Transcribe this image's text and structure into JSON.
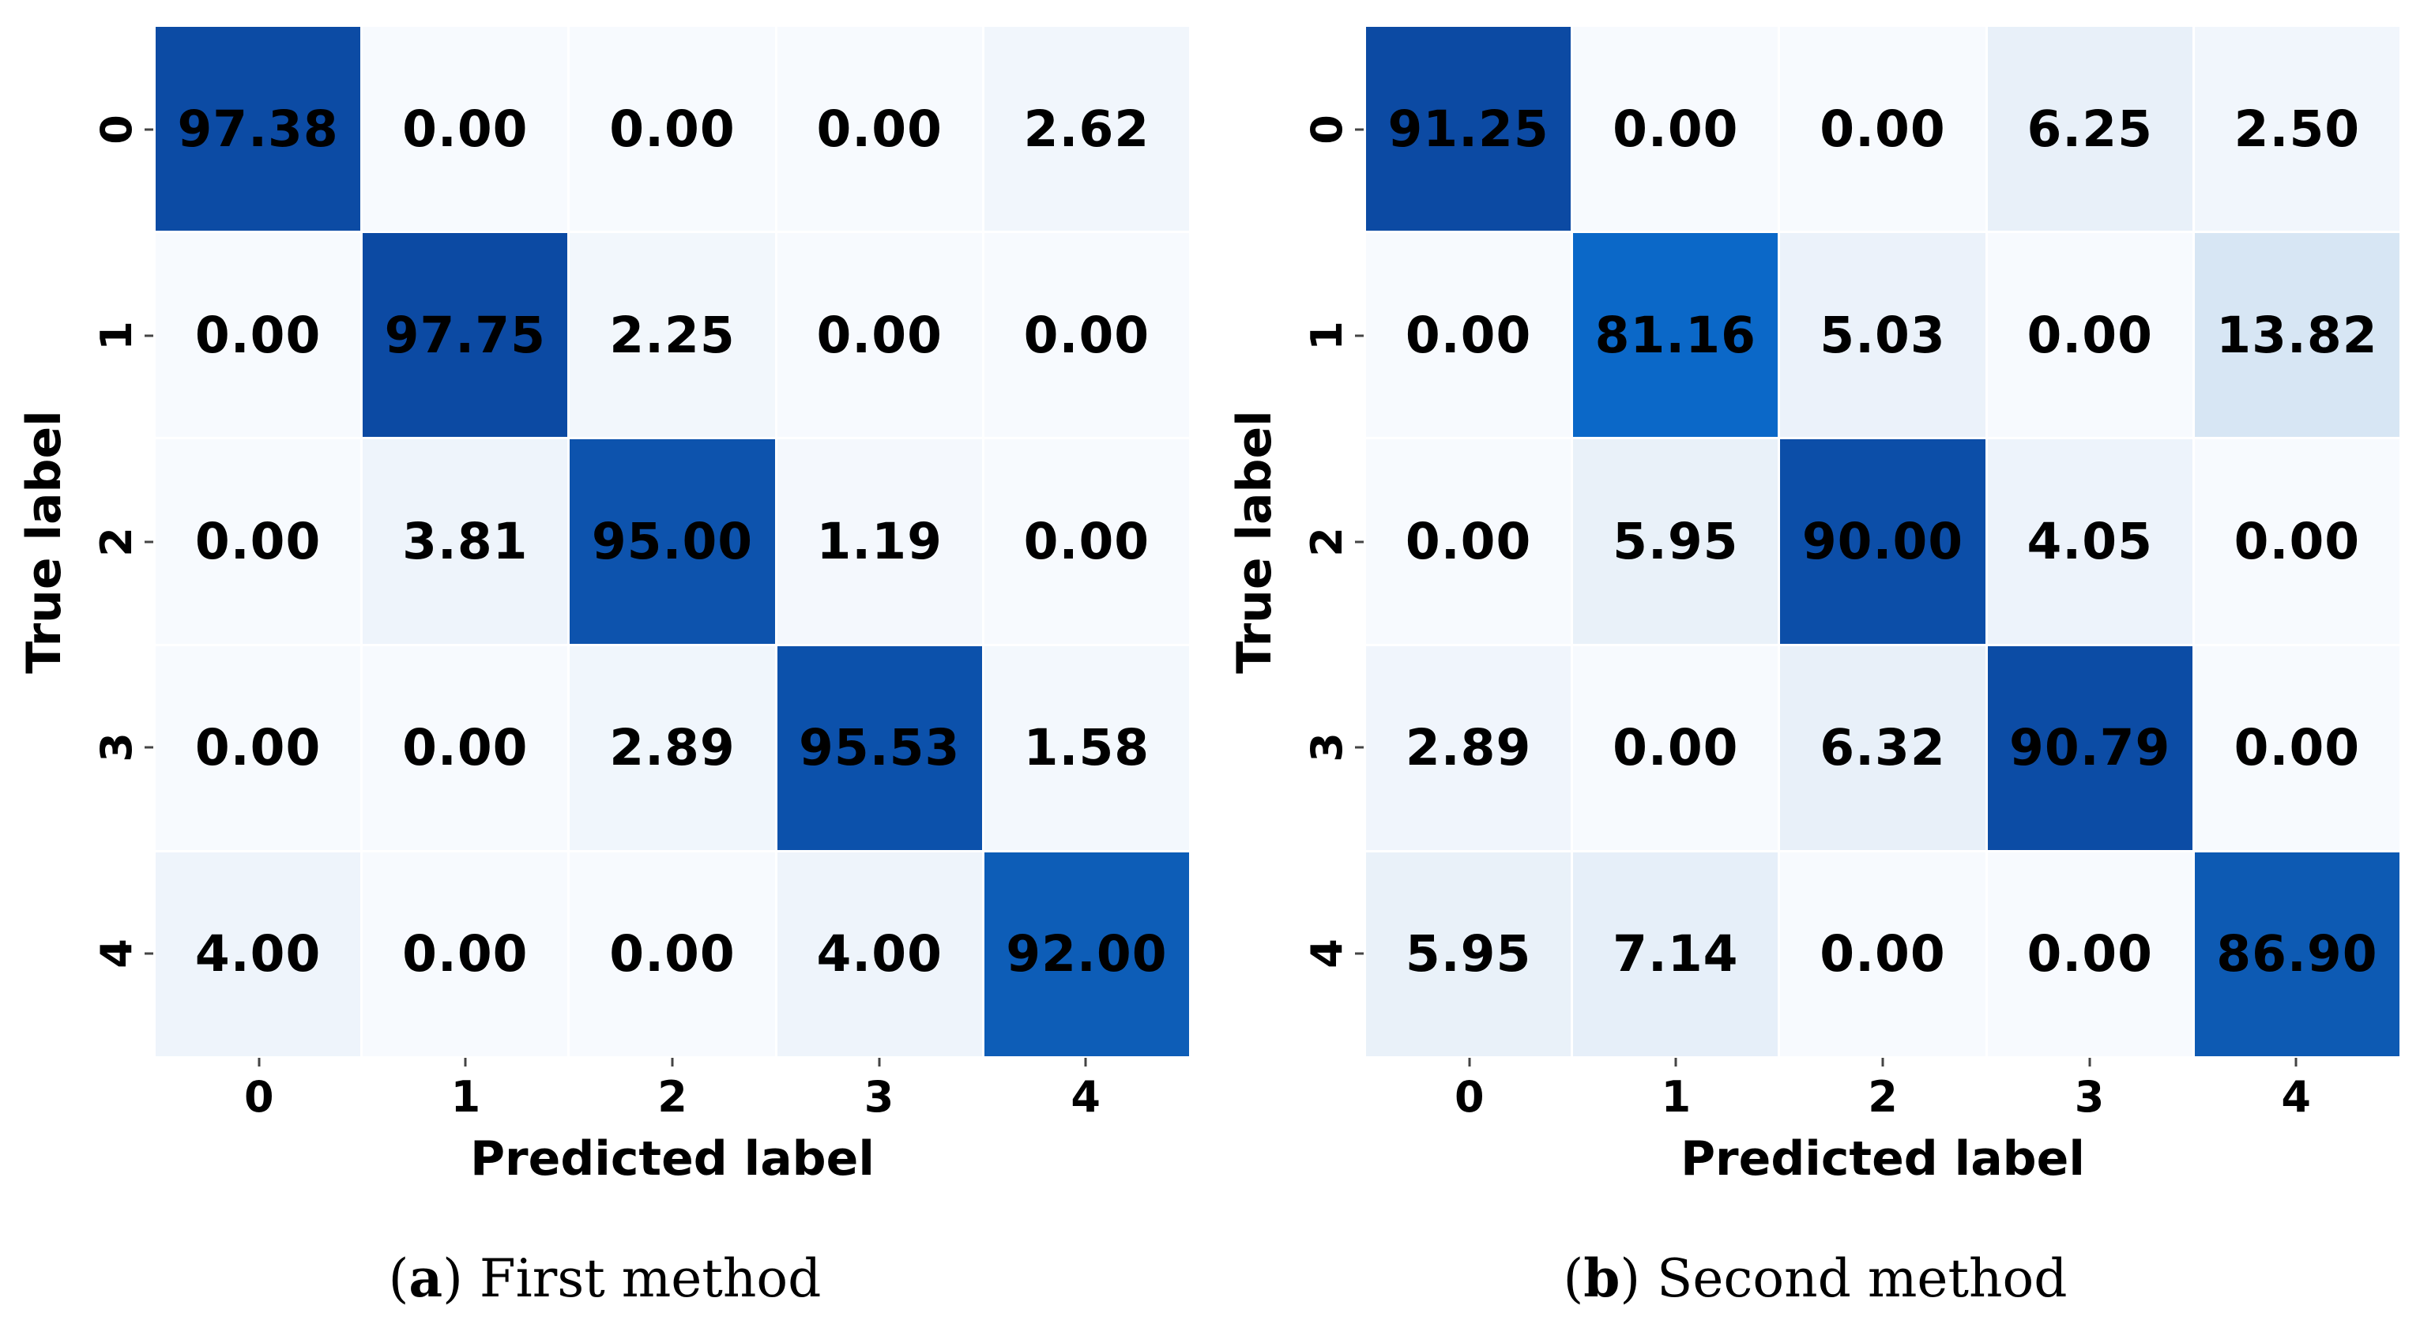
{
  "figure": {
    "background": "#ffffff",
    "text_color": "#000000",
    "tick_color": "#444444"
  },
  "chart_data": [
    {
      "type": "heatmap",
      "panel": "a",
      "caption": {
        "open": "(",
        "marker": "a",
        "close": ")",
        "text": "First method"
      },
      "xlabel": "Predicted label",
      "ylabel": "True label",
      "x_ticklabels": [
        "0",
        "1",
        "2",
        "3",
        "4"
      ],
      "y_ticklabels": [
        "0",
        "1",
        "2",
        "3",
        "4"
      ],
      "values": [
        [
          97.38,
          0.0,
          0.0,
          0.0,
          2.62
        ],
        [
          0.0,
          97.75,
          2.25,
          0.0,
          0.0
        ],
        [
          0.0,
          3.81,
          95.0,
          1.19,
          0.0
        ],
        [
          0.0,
          0.0,
          2.89,
          95.53,
          1.58
        ],
        [
          4.0,
          0.0,
          0.0,
          4.0,
          92.0
        ]
      ],
      "value_decimals": 2,
      "vmin": 0,
      "vmax": 97.75,
      "legend": "none",
      "grid": "white-gaps"
    },
    {
      "type": "heatmap",
      "panel": "b",
      "caption": {
        "open": "(",
        "marker": "b",
        "close": ")",
        "text": "Second method"
      },
      "xlabel": "Predicted label",
      "ylabel": "True label",
      "x_ticklabels": [
        "0",
        "1",
        "2",
        "3",
        "4"
      ],
      "y_ticklabels": [
        "0",
        "1",
        "2",
        "3",
        "4"
      ],
      "values": [
        [
          91.25,
          0.0,
          0.0,
          6.25,
          2.5
        ],
        [
          0.0,
          81.16,
          5.03,
          0.0,
          13.82
        ],
        [
          0.0,
          5.95,
          90.0,
          4.05,
          0.0
        ],
        [
          2.89,
          0.0,
          6.32,
          90.79,
          0.0
        ],
        [
          5.95,
          7.14,
          0.0,
          0.0,
          86.9
        ]
      ],
      "value_decimals": 2,
      "vmin": 0,
      "vmax": 91.25,
      "legend": "none",
      "grid": "white-gaps"
    }
  ],
  "colormap": {
    "name": "blues",
    "anchors": [
      {
        "t": 0.0,
        "color": "#f7fafe"
      },
      {
        "t": 0.04,
        "color": "#eef4fb"
      },
      {
        "t": 0.15,
        "color": "#d7e6f4"
      },
      {
        "t": 0.89,
        "color": "#0b68c8"
      },
      {
        "t": 0.945,
        "color": "#0d5cb6"
      },
      {
        "t": 1.0,
        "color": "#0c4aa3"
      }
    ]
  }
}
